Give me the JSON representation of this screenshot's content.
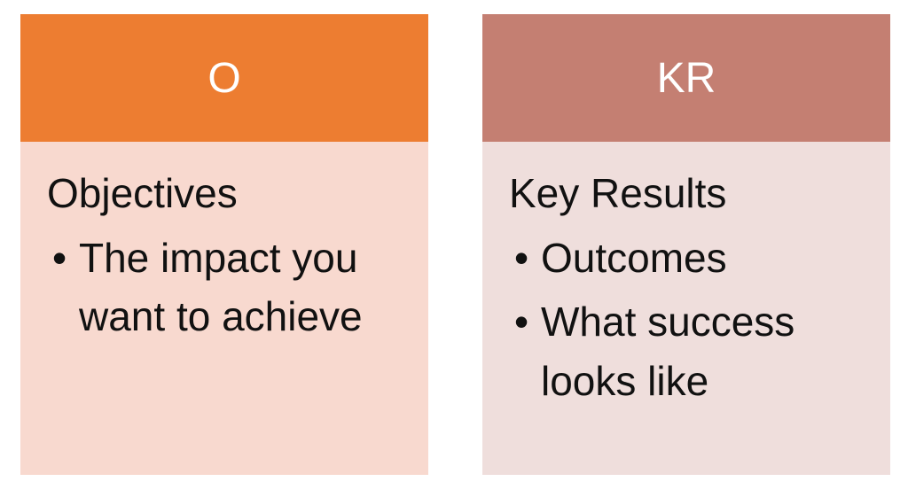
{
  "cards": [
    {
      "header": "O",
      "title": "Objectives",
      "bullets": [
        "The impact you want to achieve"
      ],
      "header_color": "#ED7D31",
      "body_color": "#F8D9CF"
    },
    {
      "header": "KR",
      "title": "Key Results",
      "bullets": [
        "Outcomes",
        "What success looks like"
      ],
      "header_color": "#C47F72",
      "body_color": "#EFDEDC"
    }
  ]
}
